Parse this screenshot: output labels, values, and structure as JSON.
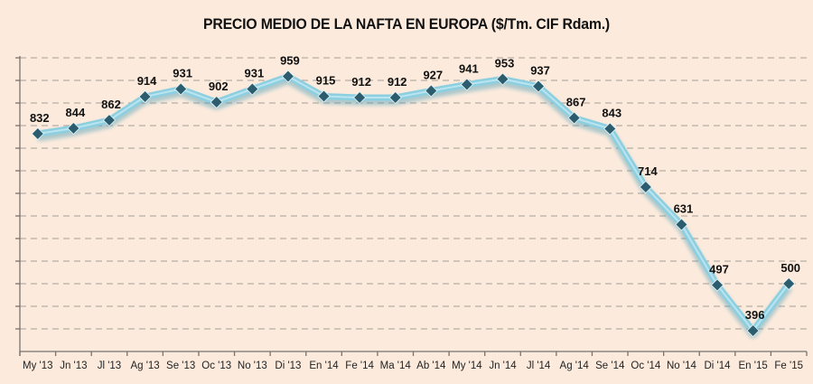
{
  "chart_data": {
    "type": "line",
    "title": "PRECIO MEDIO DE LA NAFTA EN EUROPA ($/Tm. CIF Rdam.)",
    "xlabel": "",
    "ylabel": "",
    "ylim": [
      350,
      1000
    ],
    "ystep": 50,
    "grid": true,
    "y_tick_labels_visible": false,
    "legend": "none",
    "categories": [
      "My '13",
      "Jn '13",
      "Jl '13",
      "Ag '13",
      "Se '13",
      "Oc '13",
      "No '13",
      "Di '13",
      "En '14",
      "Fe '14",
      "Ma '14",
      "Ab '14",
      "My '14",
      "Jn '14",
      "Jl '14",
      "Ag '14",
      "Se '14",
      "Oc '14",
      "No '14",
      "Di '14",
      "En '15",
      "Fe '15"
    ],
    "series": [
      {
        "name": "Precio medio nafta",
        "values": [
          832,
          844,
          862,
          914,
          931,
          902,
          931,
          959,
          915,
          912,
          912,
          927,
          941,
          953,
          937,
          867,
          843,
          714,
          631,
          497,
          396,
          500
        ],
        "line_color": "#8ccfe0",
        "marker_color": "#2b5d6e",
        "marker": "diamond"
      }
    ],
    "data_labels": [
      "832",
      "844",
      "862",
      "914",
      "931",
      "902",
      "931",
      "959",
      "915",
      "912",
      "912",
      "927",
      "941",
      "953",
      "937",
      "867",
      "843",
      "714",
      "631",
      "497",
      "396",
      "500"
    ]
  },
  "colors": {
    "background": "#fcebdd"
  }
}
